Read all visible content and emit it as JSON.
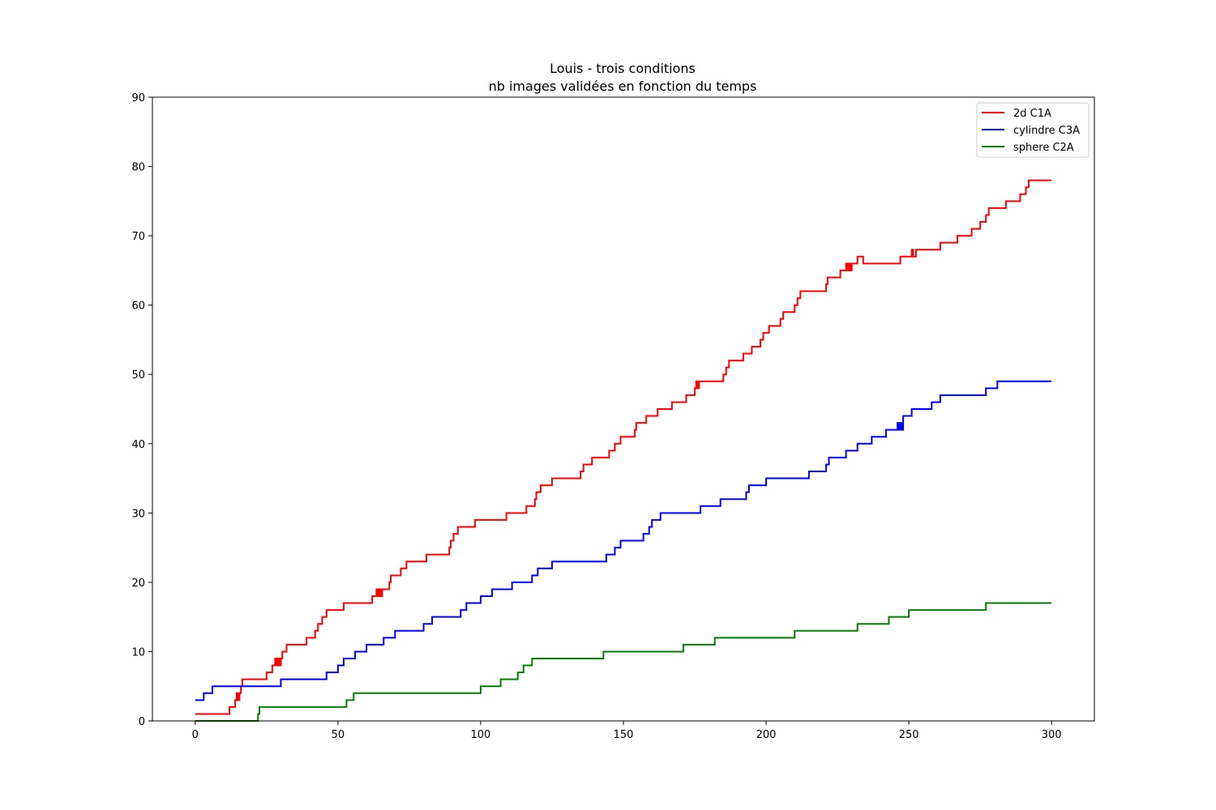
{
  "chart_data": {
    "type": "line",
    "title_lines": [
      "Louis - trois conditions",
      "nb images validées en fonction du temps"
    ],
    "xlabel": "",
    "ylabel": "",
    "xlim": [
      -15,
      315
    ],
    "ylim": [
      0,
      90
    ],
    "xticks": [
      0,
      50,
      100,
      150,
      200,
      250,
      300
    ],
    "yticks": [
      0,
      10,
      20,
      30,
      40,
      50,
      60,
      70,
      80,
      90
    ],
    "grid": false,
    "legend_position": "top-right",
    "series": [
      {
        "name": "2d C1A",
        "color": "#ff0000",
        "step": "post",
        "points": [
          [
            0,
            1
          ],
          [
            12,
            2
          ],
          [
            14,
            3
          ],
          [
            14.5,
            4
          ],
          [
            15,
            3
          ],
          [
            15.5,
            4
          ],
          [
            16,
            5
          ],
          [
            16.5,
            6
          ],
          [
            25,
            7
          ],
          [
            27,
            8
          ],
          [
            28,
            9
          ],
          [
            28.5,
            8
          ],
          [
            29,
            9
          ],
          [
            29.5,
            8
          ],
          [
            30,
            9
          ],
          [
            30.5,
            10
          ],
          [
            32,
            11
          ],
          [
            39,
            12
          ],
          [
            42,
            13
          ],
          [
            43,
            14
          ],
          [
            44.5,
            15
          ],
          [
            46,
            16
          ],
          [
            52,
            17
          ],
          [
            62,
            18
          ],
          [
            63.5,
            19
          ],
          [
            64,
            18
          ],
          [
            64.5,
            19
          ],
          [
            65,
            18
          ],
          [
            65.5,
            19
          ],
          [
            68,
            20
          ],
          [
            68.5,
            21
          ],
          [
            72,
            22
          ],
          [
            74,
            23
          ],
          [
            81,
            24
          ],
          [
            89,
            25
          ],
          [
            89.5,
            26
          ],
          [
            90.5,
            27
          ],
          [
            92,
            28
          ],
          [
            98,
            29
          ],
          [
            109,
            30
          ],
          [
            116,
            31
          ],
          [
            119,
            32
          ],
          [
            119.5,
            33
          ],
          [
            121,
            34
          ],
          [
            125,
            35
          ],
          [
            135,
            36
          ],
          [
            136,
            37
          ],
          [
            139,
            38
          ],
          [
            145,
            39
          ],
          [
            147,
            40
          ],
          [
            149,
            41
          ],
          [
            154,
            42
          ],
          [
            154.5,
            43
          ],
          [
            158,
            44
          ],
          [
            162,
            45
          ],
          [
            167,
            46
          ],
          [
            172,
            47
          ],
          [
            175,
            48
          ],
          [
            175.5,
            49
          ],
          [
            176,
            48
          ],
          [
            176.5,
            49
          ],
          [
            185,
            50
          ],
          [
            186,
            51
          ],
          [
            187,
            52
          ],
          [
            192,
            53
          ],
          [
            195,
            54
          ],
          [
            198,
            55
          ],
          [
            199,
            56
          ],
          [
            201,
            57
          ],
          [
            205,
            58
          ],
          [
            206,
            59
          ],
          [
            210,
            60
          ],
          [
            211,
            61
          ],
          [
            212,
            62
          ],
          [
            221,
            63
          ],
          [
            221.5,
            64
          ],
          [
            226,
            65
          ],
          [
            228,
            66
          ],
          [
            228.5,
            65
          ],
          [
            229,
            66
          ],
          [
            229.5,
            65
          ],
          [
            230,
            66
          ],
          [
            232,
            67
          ],
          [
            234,
            66
          ],
          [
            247,
            67
          ],
          [
            251,
            68
          ],
          [
            251.5,
            67
          ],
          [
            252.5,
            68
          ],
          [
            261,
            69
          ],
          [
            267,
            70
          ],
          [
            272,
            71
          ],
          [
            275,
            72
          ],
          [
            277,
            73
          ],
          [
            278,
            74
          ],
          [
            284,
            75
          ],
          [
            289,
            76
          ],
          [
            291,
            77
          ],
          [
            292,
            78
          ],
          [
            300,
            78
          ]
        ]
      },
      {
        "name": "cylindre C3A",
        "color": "#0000ff",
        "step": "post",
        "points": [
          [
            0,
            3
          ],
          [
            3,
            4
          ],
          [
            6,
            5
          ],
          [
            30,
            6
          ],
          [
            46,
            7
          ],
          [
            50,
            8
          ],
          [
            52,
            9
          ],
          [
            56,
            10
          ],
          [
            60,
            11
          ],
          [
            66,
            12
          ],
          [
            70,
            13
          ],
          [
            80,
            14
          ],
          [
            83,
            15
          ],
          [
            93,
            16
          ],
          [
            95,
            17
          ],
          [
            100,
            18
          ],
          [
            104,
            19
          ],
          [
            111,
            20
          ],
          [
            118,
            21
          ],
          [
            120,
            22
          ],
          [
            125,
            23
          ],
          [
            144,
            24
          ],
          [
            147,
            25
          ],
          [
            149,
            26
          ],
          [
            157,
            27
          ],
          [
            159,
            28
          ],
          [
            160,
            29
          ],
          [
            163,
            30
          ],
          [
            177,
            31
          ],
          [
            184,
            32
          ],
          [
            193,
            33
          ],
          [
            194,
            34
          ],
          [
            200,
            35
          ],
          [
            215,
            36
          ],
          [
            221,
            37
          ],
          [
            222,
            38
          ],
          [
            228,
            39
          ],
          [
            232,
            40
          ],
          [
            237,
            41
          ],
          [
            242,
            42
          ],
          [
            246,
            43
          ],
          [
            246.5,
            42
          ],
          [
            247,
            43
          ],
          [
            247.5,
            42
          ],
          [
            248,
            44
          ],
          [
            251,
            45
          ],
          [
            258,
            46
          ],
          [
            261,
            47
          ],
          [
            277,
            48
          ],
          [
            281,
            49
          ],
          [
            300,
            49
          ]
        ]
      },
      {
        "name": "sphere C2A",
        "color": "#008000",
        "step": "post",
        "points": [
          [
            0,
            0
          ],
          [
            22,
            1
          ],
          [
            22.5,
            2
          ],
          [
            53,
            3
          ],
          [
            55.5,
            4
          ],
          [
            100,
            5
          ],
          [
            107,
            6
          ],
          [
            113,
            7
          ],
          [
            115,
            8
          ],
          [
            118,
            9
          ],
          [
            143,
            10
          ],
          [
            171,
            11
          ],
          [
            182,
            12
          ],
          [
            210,
            13
          ],
          [
            232,
            14
          ],
          [
            243,
            15
          ],
          [
            250,
            16
          ],
          [
            277,
            17
          ],
          [
            300,
            17
          ]
        ]
      }
    ]
  }
}
